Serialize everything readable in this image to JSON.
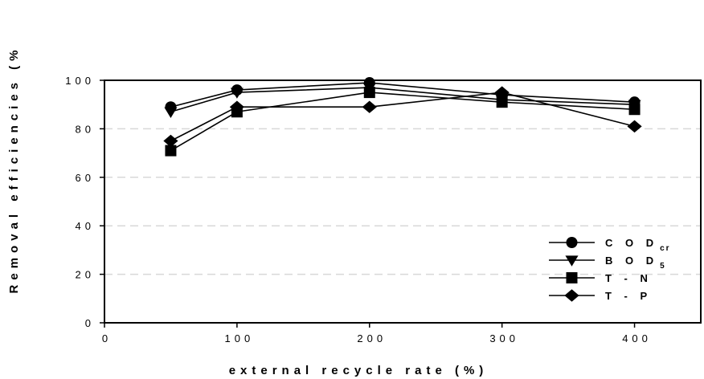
{
  "chart_data": {
    "type": "line",
    "title": "",
    "xlabel": "external recycle rate (%)",
    "ylabel": "Removal efficiencies (%",
    "xlim": [
      0,
      450
    ],
    "ylim": [
      0,
      100
    ],
    "xticks": [
      0,
      100,
      200,
      300,
      400
    ],
    "yticks": [
      0,
      20,
      40,
      60,
      80,
      100
    ],
    "xtick_labels": [
      "0",
      "100",
      "200",
      "300",
      "400"
    ],
    "ytick_labels": [
      "0",
      "20",
      "40",
      "60",
      "80",
      "100"
    ],
    "grid": true,
    "legend_position": "bottom-right",
    "series": [
      {
        "name": "COD",
        "name_sub": "cr",
        "marker": "circle",
        "x": [
          50,
          100,
          200,
          300,
          400
        ],
        "y": [
          89,
          96,
          99,
          94,
          91
        ]
      },
      {
        "name": "BOD",
        "name_sub": "5",
        "marker": "triangle-down",
        "x": [
          50,
          100,
          200,
          300,
          400
        ],
        "y": [
          87,
          95,
          97,
          92,
          90
        ]
      },
      {
        "name": "T-N",
        "name_sub": "",
        "marker": "square",
        "x": [
          50,
          100,
          200,
          300,
          400
        ],
        "y": [
          71,
          87,
          95,
          91,
          88
        ]
      },
      {
        "name": "T-P",
        "name_sub": "",
        "marker": "diamond",
        "x": [
          50,
          100,
          200,
          300,
          400
        ],
        "y": [
          75,
          89,
          89,
          95,
          81
        ]
      }
    ],
    "colors": {
      "line": "#000000",
      "grid": "#d8d8d8",
      "background": "#ffffff"
    }
  }
}
